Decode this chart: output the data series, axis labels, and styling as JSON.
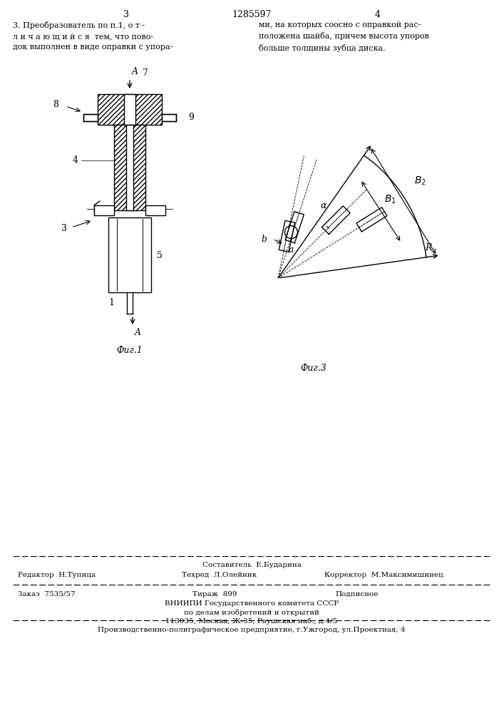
{
  "title_page_num_left": "3",
  "title_center": "1285597",
  "title_page_num_right": "4",
  "fig1_label": "Фиг.1",
  "fig3_label": "Фиг.3",
  "footer_line1": "Составитель  Е.Бударина",
  "footer_line2_left": "Редактор  Н.Тупица",
  "footer_line2_mid": "Техред  Л.Олейник",
  "footer_line2_right": "Корректор  М.Максимишинец",
  "footer_line3_left": "Заказ  7535/57",
  "footer_line3_mid": "Тираж  899",
  "footer_line3_right": "Подписное",
  "footer_line4": "ВНИИПИ Государственного комитета СССР",
  "footer_line5": "по делам изобретений и открытий",
  "footer_line6": "113035, Москва, Ж-35, Раушская наб., д.4/5",
  "footer_line7": "Производственно-полиграфическое предприятие, г.Ужгород, ул.Проектная, 4",
  "bg_color": "#ffffff",
  "line_color": "#000000"
}
